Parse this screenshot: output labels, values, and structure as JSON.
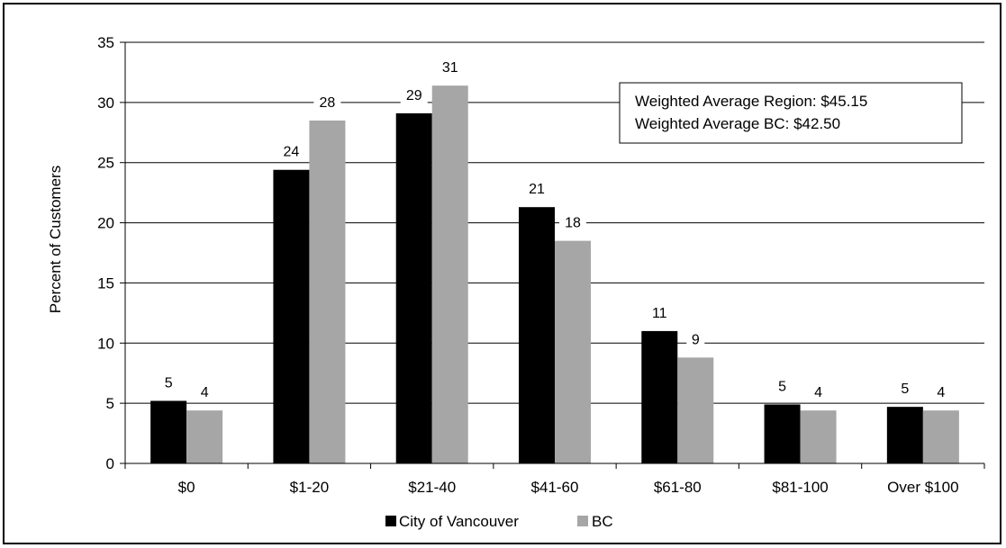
{
  "chart_data": {
    "type": "bar",
    "title": "",
    "xlabel": "",
    "ylabel": "Percent of Customers",
    "ylim": [
      0,
      35
    ],
    "yticks": [
      0,
      5,
      10,
      15,
      20,
      25,
      30,
      35
    ],
    "grid": true,
    "categories": [
      "$0",
      "$1-20",
      "$21-40",
      "$41-60",
      "$61-80",
      "$81-100",
      "Over $100"
    ],
    "series": [
      {
        "name": "City of Vancouver",
        "color": "#000000",
        "values": [
          5.2,
          24.4,
          29.1,
          21.3,
          11.0,
          4.9,
          4.7
        ],
        "labels": [
          "5",
          "24",
          "29",
          "21",
          "11",
          "5",
          "5"
        ]
      },
      {
        "name": "BC",
        "color": "#a6a6a6",
        "values": [
          4.4,
          28.5,
          31.4,
          18.5,
          8.8,
          4.4,
          4.4
        ],
        "labels": [
          "4",
          "28",
          "31",
          "18",
          "9",
          "4",
          "4"
        ]
      }
    ],
    "legend": "bottom-center",
    "annotation": {
      "lines": [
        "Weighted Average Region: $45.15",
        "Weighted Average BC: $42.50"
      ]
    }
  }
}
